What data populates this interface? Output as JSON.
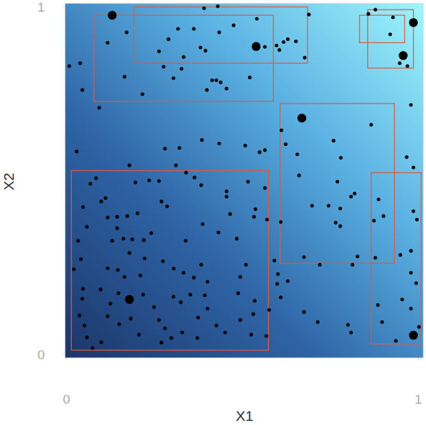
{
  "chart_data": {
    "type": "scatter",
    "x_label": "X1",
    "y_label": "X2",
    "xlim": [
      -0.004,
      1.014
    ],
    "ylim": [
      -0.01,
      1.01
    ],
    "xticks": [
      0,
      1
    ],
    "yticks": [
      0,
      1
    ],
    "grid": false,
    "series": [
      {
        "color": "#000000",
        "marker": "circle",
        "x": [
          0.391,
          0.43,
          0.689,
          0.008,
          0.039,
          0.117,
          0.171,
          0.263,
          0.29,
          0.317,
          0.333,
          0.362,
          0.381,
          0.395,
          0.434,
          0.475,
          0.541,
          0.564,
          0.597,
          0.605,
          0.617,
          0.629,
          0.652,
          0.677,
          0.858,
          0.878,
          0.92,
          0.928,
          0.947,
          0.969,
          0.276,
          0.327,
          0.304,
          0.414,
          0.426,
          0.438,
          0.399,
          0.455,
          0.216,
          0.165,
          0.521,
          0.093,
          0.045,
          0.611,
          0.623,
          0.866,
          0.979,
          0.656,
          0.759,
          0.78,
          0.549,
          0.564,
          0.508,
          0.434,
          0.28,
          0.321,
          0.385,
          0.179,
          0.235,
          0.263,
          0.311,
          0.196,
          0.34,
          0.364,
          0.383,
          0.455,
          0.455,
          0.516,
          0.564,
          0.537,
          0.661,
          0.77,
          0.809,
          0.819,
          0.778,
          0.698,
          0.745,
          0.765,
          0.778,
          0.609,
          0.874,
          0.887,
          0.901,
          0.967,
          0.986,
          0.986,
          0.996,
          0.878,
          0.949,
          0.979,
          0.029,
          0.084,
          0.068,
          0.047,
          0.058,
          0.099,
          0.111,
          0.117,
          0.144,
          0.173,
          0.202,
          0.144,
          0.13,
          0.162,
          0.187,
          0.22,
          0.241,
          0.179,
          0.222,
          0.27,
          0.286,
          0.339,
          0.387,
          0.383,
          0.484,
          0.465,
          0.432,
          0.533,
          0.57,
          0.591,
          0.51,
          0.601,
          0.629,
          0.675,
          0.72,
          0.827,
          0.813,
          0.033,
          0.041,
          0.117,
          0.146,
          0.165,
          0.21,
          0.274,
          0.305,
          0.333,
          0.362,
          0.401,
          0.494,
          0.021,
          0.047,
          0.045,
          0.097,
          0.148,
          0.125,
          0.117,
          0.218,
          0.249,
          0.304,
          0.325,
          0.352,
          0.393,
          0.401,
          0.488,
          0.535,
          0.599,
          0.609,
          0.576,
          0.494,
          0.531,
          0.374,
          0.263,
          0.28,
          0.183,
          0.15,
          0.051,
          0.058,
          0.037,
          0.099,
          0.074,
          0.206,
          0.298,
          0.372,
          0.426,
          0.451,
          0.525,
          0.568,
          0.675,
          0.714,
          0.809,
          0.8,
          0.885,
          0.954,
          0.979,
          0.897,
          0.936,
          0.994,
          0.979,
          1.002,
          0.329,
          0.27
        ],
        "values": [
          0.996,
          1.002,
          0.978,
          0.83,
          0.838,
          0.897,
          0.927,
          0.872,
          0.907,
          0.937,
          0.856,
          0.937,
          0.883,
          0.874,
          0.927,
          0.947,
          0.966,
          0.885,
          0.889,
          0.876,
          0.899,
          0.907,
          0.901,
          0.854,
          0.98,
          0.992,
          0.921,
          0.97,
          0.838,
          0.83,
          0.828,
          0.822,
          0.795,
          0.789,
          0.789,
          0.783,
          0.761,
          0.765,
          0.749,
          0.799,
          0.797,
          0.71,
          0.761,
          0.645,
          0.605,
          0.661,
          0.718,
          0.576,
          0.615,
          0.566,
          0.582,
          0.588,
          0.601,
          0.607,
          0.592,
          0.594,
          0.617,
          0.544,
          0.501,
          0.499,
          0.544,
          0.495,
          0.523,
          0.509,
          0.487,
          0.454,
          0.469,
          0.497,
          0.479,
          0.418,
          0.515,
          0.497,
          0.454,
          0.463,
          0.42,
          0.428,
          0.428,
          0.379,
          0.369,
          0.381,
          0.385,
          0.446,
          0.398,
          0.568,
          0.538,
          0.412,
          0.388,
          0.278,
          0.286,
          0.298,
          0.584,
          0.507,
          0.491,
          0.424,
          0.367,
          0.44,
          0.45,
          0.394,
          0.396,
          0.398,
          0.406,
          0.363,
          0.327,
          0.333,
          0.331,
          0.329,
          0.349,
          0.292,
          0.276,
          0.44,
          0.426,
          0.327,
          0.375,
          0.258,
          0.333,
          0.404,
          0.351,
          0.396,
          0.388,
          0.27,
          0.258,
          0.231,
          0.211,
          0.28,
          0.258,
          0.282,
          0.258,
          0.327,
          0.274,
          0.248,
          0.243,
          0.223,
          0.227,
          0.268,
          0.247,
          0.235,
          0.221,
          0.209,
          0.223,
          0.245,
          0.189,
          0.16,
          0.187,
          0.176,
          0.146,
          0.11,
          0.172,
          0.136,
          0.166,
          0.15,
          0.172,
          0.17,
          0.132,
          0.176,
          0.154,
          0.203,
          0.164,
          0.128,
          0.099,
          0.116,
          0.106,
          0.099,
          0.075,
          0.103,
          0.087,
          0.083,
          0.049,
          0.112,
          0.035,
          0.018,
          0.057,
          0.047,
          0.047,
          0.083,
          0.063,
          0.057,
          0.053,
          0.122,
          0.093,
          0.063,
          0.085,
          0.142,
          0.158,
          0.132,
          0.093,
          0.039,
          0.205,
          0.235,
          0.079,
          0.063,
          0.034
        ]
      },
      {
        "color": "#000000",
        "marker": "large-circle",
        "x": [
          0.13,
          0.539,
          0.669,
          0.179,
          0.986,
          0.957,
          0.986
        ],
        "values": [
          0.976,
          0.886,
          0.68,
          0.158,
          0.955,
          0.86,
          0.055
        ]
      }
    ],
    "rectangles": {
      "color": "#e2583e",
      "xmin": [
        0.078,
        0.191,
        0.833,
        0.856,
        0.607,
        0.014,
        0.866
      ],
      "xmax": [
        0.588,
        0.685,
        0.961,
        0.986,
        0.932,
        0.574,
        1.008
      ],
      "ymin": [
        0.728,
        0.838,
        0.897,
        0.824,
        0.262,
        0.012,
        0.03
      ],
      "ymax": [
        0.976,
        1.0,
        0.976,
        0.992,
        0.722,
        0.529,
        0.523
      ]
    }
  }
}
